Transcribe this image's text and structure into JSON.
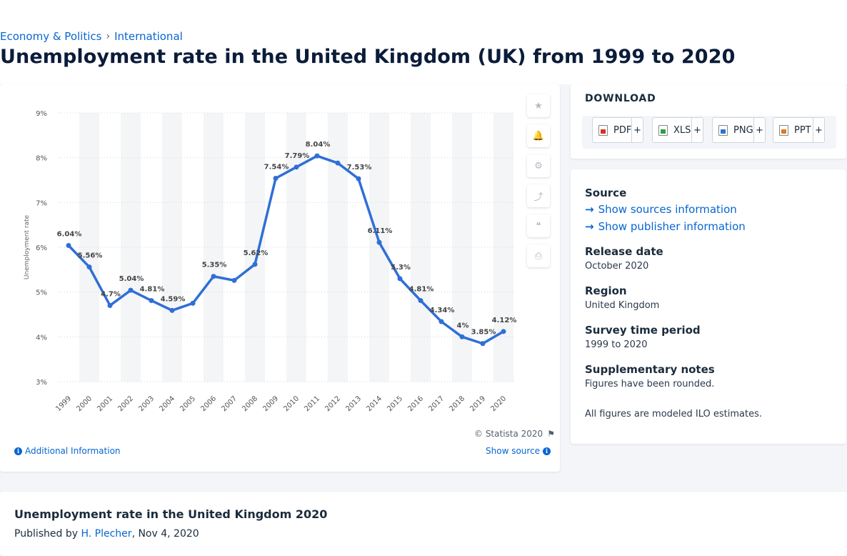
{
  "breadcrumb": {
    "items": [
      "Economy & Politics",
      "International"
    ],
    "separator": "›"
  },
  "page_title": "Unemployment rate in the United Kingdom (UK) from 1999 to 2020",
  "chart_data": {
    "type": "line",
    "title": "",
    "ylabel": "Unemployment rate",
    "xlabel": "",
    "ylim": [
      3,
      9
    ],
    "yticks": [
      "3%",
      "4%",
      "5%",
      "6%",
      "7%",
      "8%",
      "9%"
    ],
    "grid": "horizontal dotted",
    "categories": [
      "1999",
      "2000",
      "2001",
      "2002",
      "2003",
      "2004",
      "2005",
      "2006",
      "2007",
      "2008",
      "2009",
      "2010",
      "2011",
      "2012",
      "2013",
      "2014",
      "2015",
      "2016",
      "2017",
      "2018",
      "2019",
      "2020"
    ],
    "series": [
      {
        "values": [
          6.04,
          5.56,
          4.7,
          5.04,
          4.81,
          4.59,
          4.75,
          5.35,
          5.26,
          5.62,
          7.54,
          7.79,
          8.04,
          7.88,
          7.53,
          6.11,
          5.3,
          4.81,
          4.34,
          4.0,
          3.85,
          4.12
        ],
        "labels": [
          "6.04%",
          "5.56%",
          "4.7%",
          "5.04%",
          "4.81%",
          "4.59%",
          "",
          "5.35%",
          "",
          "5.62%",
          "7.54%",
          "7.79%",
          "8.04%",
          "",
          "7.53%",
          "6.11%",
          "5.3%",
          "4.81%",
          "4.34%",
          "4%",
          "3.85%",
          "4.12%"
        ]
      }
    ],
    "line_color": "#2f6fd6",
    "band_color": "#f4f5f7"
  },
  "chart_tools": {
    "icons": [
      "star-icon",
      "bell-icon",
      "gear-icon",
      "share-icon",
      "quote-icon",
      "print-icon"
    ],
    "glyphs": [
      "★",
      "🔔",
      "⚙",
      "⤴",
      "❝",
      "⎙"
    ]
  },
  "chart_footer": {
    "credit": "© Statista 2020",
    "additional_info": "Additional Information",
    "show_source": "Show source"
  },
  "download": {
    "title": "DOWNLOAD",
    "buttons": [
      "PDF",
      "XLS",
      "PNG",
      "PPT"
    ],
    "plus": "+"
  },
  "details": {
    "source_label": "Source",
    "show_sources": "Show sources information",
    "show_publisher": "Show publisher information",
    "release_label": "Release date",
    "release_value": "October 2020",
    "region_label": "Region",
    "region_value": "United Kingdom",
    "survey_label": "Survey time period",
    "survey_value": "1999 to 2020",
    "notes_label": "Supplementary notes",
    "notes_value": "Figures have been rounded.",
    "notes_extra": "All figures are modeled ILO estimates."
  },
  "bottom": {
    "title": "Unemployment rate in the United Kingdom 2020",
    "published_prefix": "Published by",
    "author": "H. Plecher",
    "date": ", Nov 4, 2020"
  },
  "colors": {
    "accent": "#0766d1",
    "line": "#2f6fd6",
    "title": "#0b1c3a"
  }
}
